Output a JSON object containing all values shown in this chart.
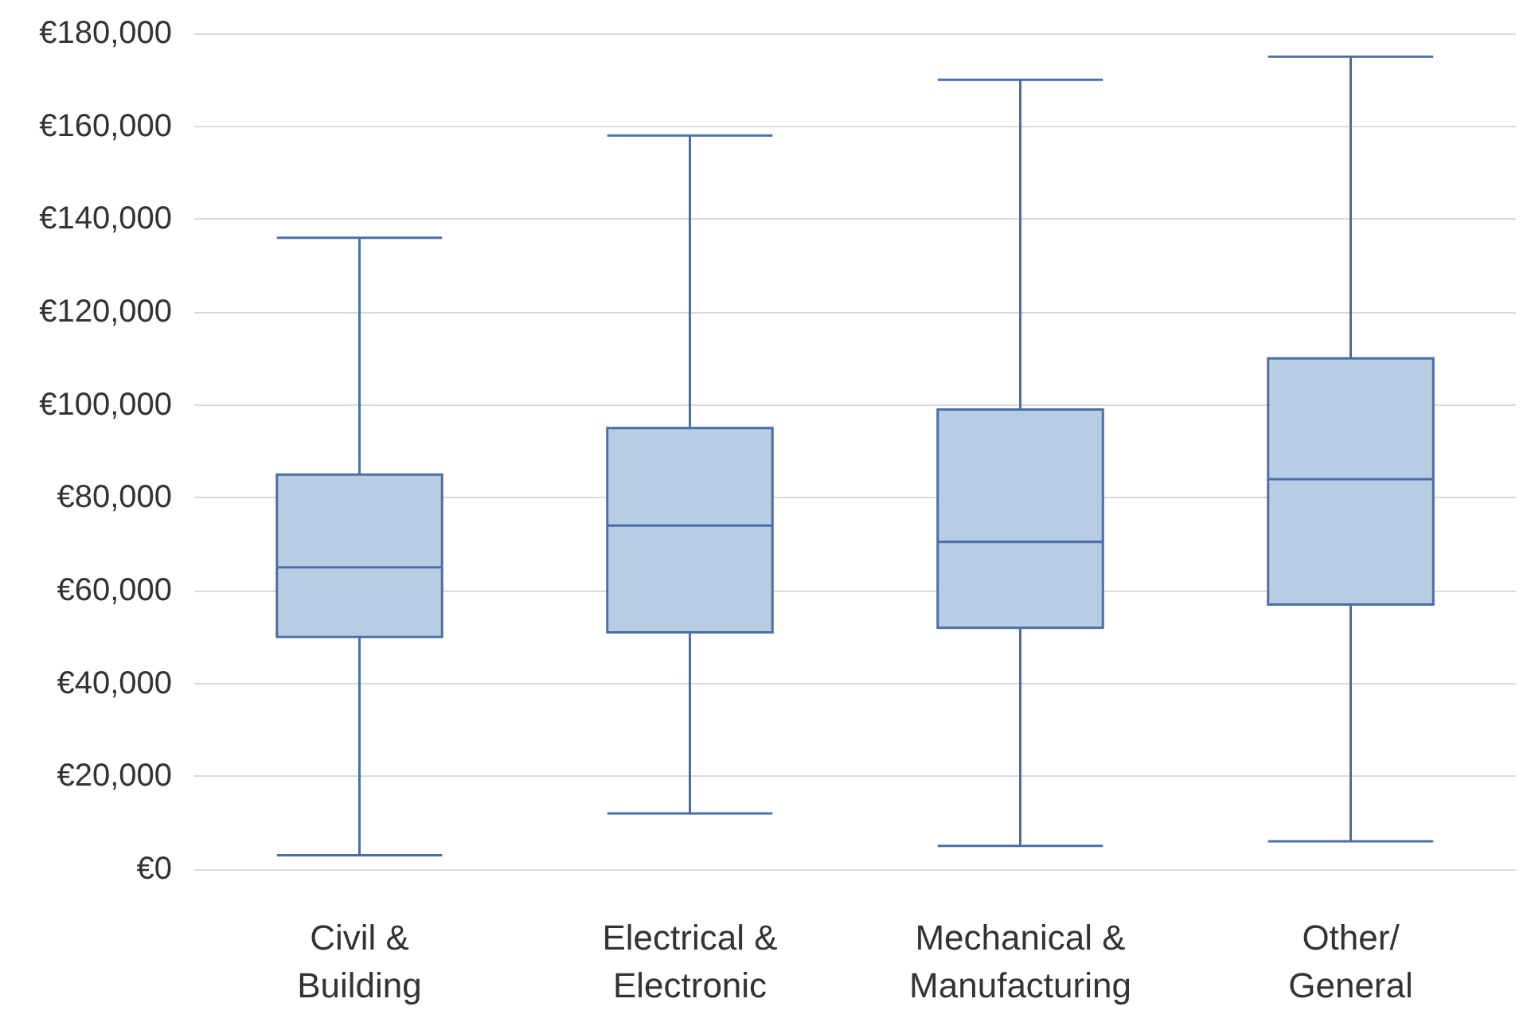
{
  "chart_data": {
    "type": "box",
    "categories": [
      "Civil &\nBuilding",
      "Electrical &\nElectronic",
      "Mechanical &\nManufacturing",
      "Other/\nGeneral"
    ],
    "boxes": [
      {
        "low": 3000,
        "q1": 50000,
        "median": 65000,
        "q3": 85000,
        "high": 136000
      },
      {
        "low": 12000,
        "q1": 51000,
        "median": 74000,
        "q3": 95000,
        "high": 158000
      },
      {
        "low": 5000,
        "q1": 52000,
        "median": 70500,
        "q3": 99000,
        "high": 170000
      },
      {
        "low": 6000,
        "q1": 57000,
        "median": 84000,
        "q3": 110000,
        "high": 175000
      }
    ],
    "color": "#b8cce4",
    "ylim": [
      0,
      180000
    ],
    "yticks": [
      {
        "value": 0,
        "label": "€0"
      },
      {
        "value": 20000,
        "label": "€20,000"
      },
      {
        "value": 40000,
        "label": "€40,000"
      },
      {
        "value": 60000,
        "label": "€60,000"
      },
      {
        "value": 80000,
        "label": "€80,000"
      },
      {
        "value": 100000,
        "label": "€100,000"
      },
      {
        "value": 120000,
        "label": "€120,000"
      },
      {
        "value": 140000,
        "label": "€140,000"
      },
      {
        "value": 160000,
        "label": "€160,000"
      },
      {
        "value": 180000,
        "label": "€180,000"
      }
    ],
    "grid": "y"
  }
}
